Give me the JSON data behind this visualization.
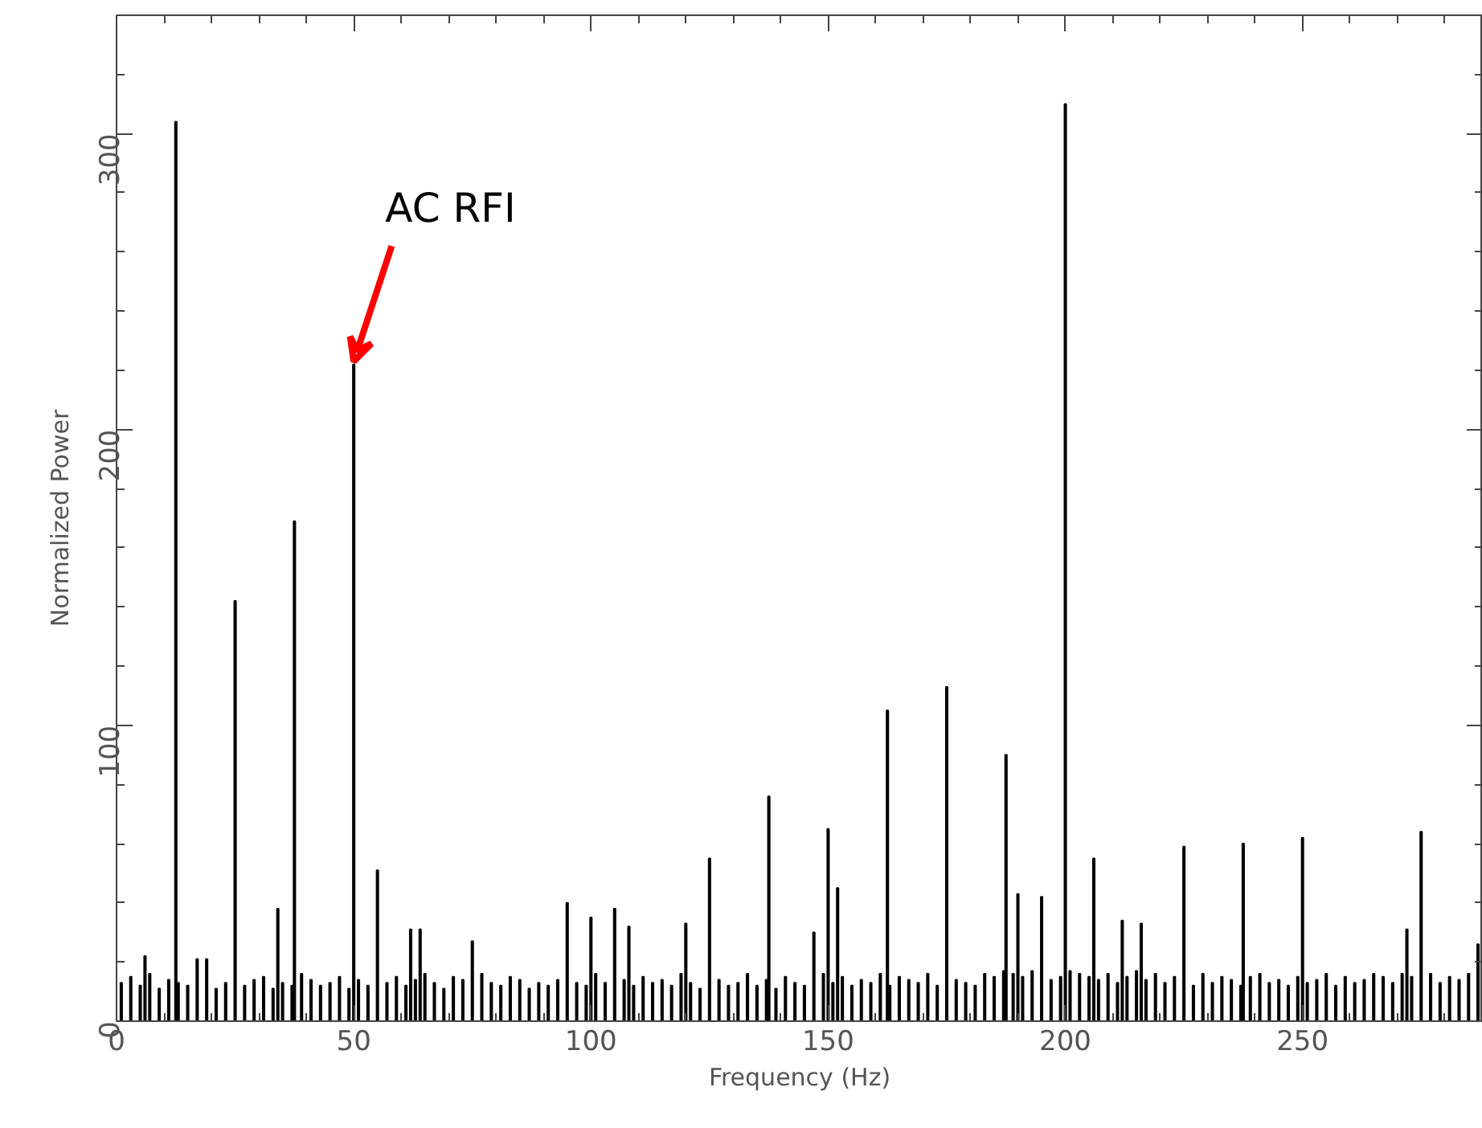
{
  "chart_data": {
    "type": "bar",
    "xlabel": "Frequency (Hz)",
    "ylabel": "Normalized Power",
    "xlim": [
      0,
      288
    ],
    "ylim": [
      0,
      340
    ],
    "xticks": [
      0,
      50,
      100,
      150,
      200,
      250
    ],
    "yticks": [
      0,
      100,
      200,
      300
    ],
    "grid": false,
    "annotations": [
      {
        "text": "AC RFI",
        "x": 50,
        "y": 222
      }
    ],
    "series": [
      {
        "color": "#000000",
        "x": [
          1,
          3,
          5,
          7,
          9,
          11,
          13,
          15,
          21,
          23,
          27,
          29,
          31,
          33,
          35,
          37,
          39,
          41,
          43,
          45,
          47,
          49,
          51,
          53,
          57,
          59,
          61,
          63,
          65,
          67,
          69,
          71,
          73,
          77,
          79,
          81,
          83,
          85,
          87,
          89,
          91,
          93,
          97,
          99,
          101,
          103,
          107,
          109,
          111,
          113,
          115,
          117,
          119,
          121,
          123,
          127,
          129,
          131,
          133,
          135,
          137,
          139,
          141,
          143,
          145,
          149,
          151,
          153,
          155,
          157,
          159,
          161,
          163,
          165,
          167,
          169,
          171,
          173,
          177,
          179,
          181,
          183,
          185,
          187,
          189,
          191,
          193,
          197,
          199,
          201,
          203,
          205,
          207,
          209,
          211,
          213,
          215,
          217,
          219,
          221,
          223,
          227,
          229,
          231,
          233,
          235,
          237,
          239,
          241,
          243,
          245,
          247,
          249,
          251,
          253,
          255,
          257,
          259,
          261,
          263,
          265,
          267,
          269,
          271,
          273,
          277,
          279,
          281,
          283,
          285
        ],
        "values": [
          13,
          15,
          12,
          16,
          11,
          14,
          13,
          12,
          11,
          13,
          12,
          14,
          15,
          11,
          13,
          12,
          16,
          14,
          12,
          13,
          15,
          11,
          14,
          12,
          13,
          15,
          12,
          14,
          16,
          13,
          11,
          15,
          14,
          16,
          13,
          12,
          15,
          14,
          11,
          13,
          12,
          14,
          13,
          12,
          16,
          13,
          14,
          12,
          15,
          13,
          14,
          12,
          16,
          13,
          11,
          14,
          12,
          13,
          16,
          12,
          14,
          11,
          15,
          13,
          12,
          16,
          13,
          15,
          12,
          14,
          13,
          16,
          12,
          15,
          14,
          13,
          16,
          12,
          14,
          13,
          12,
          16,
          15,
          17,
          16,
          15,
          17,
          14,
          15,
          17,
          16,
          15,
          14,
          16,
          13,
          15,
          17,
          14,
          16,
          13,
          15,
          12,
          16,
          13,
          15,
          14,
          12,
          15,
          16,
          13,
          14,
          12,
          15,
          13,
          14,
          16,
          12,
          15,
          13,
          14,
          16,
          15,
          13,
          16,
          15,
          16,
          13,
          15,
          14,
          16
        ]
      },
      {
        "color": "#000000",
        "x": [
          6,
          12.5,
          17,
          19,
          25,
          34,
          37.5,
          50,
          55,
          62,
          64,
          75,
          95,
          100,
          105,
          108,
          120,
          125,
          137.5,
          147,
          150,
          152,
          162.5,
          175,
          187.5,
          190,
          195,
          200,
          206,
          212,
          216,
          225,
          237.5,
          250,
          272,
          275,
          287
        ],
        "values": [
          22,
          304,
          21,
          21,
          142,
          38,
          169,
          222,
          51,
          31,
          31,
          27,
          40,
          35,
          38,
          32,
          33,
          55,
          76,
          30,
          65,
          45,
          105,
          113,
          90,
          43,
          42,
          310,
          55,
          34,
          33,
          59,
          60,
          62,
          31,
          64,
          26
        ]
      }
    ]
  }
}
